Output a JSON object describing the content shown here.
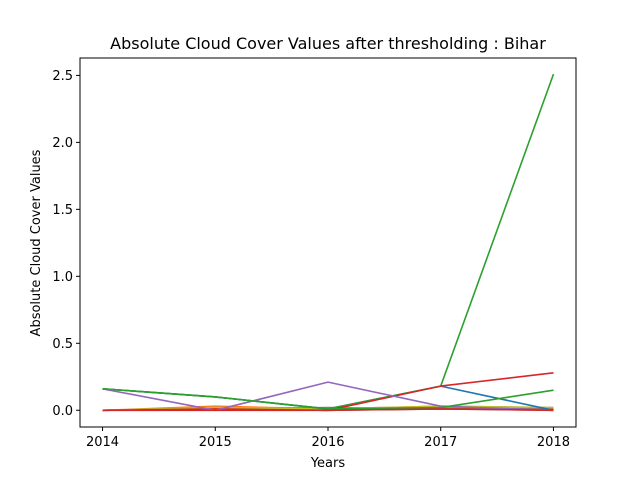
{
  "chart_data": {
    "type": "line",
    "title": "Absolute Cloud Cover Values after thresholding : Bihar",
    "xlabel": "Years",
    "ylabel": "Absolute Cloud Cover Values",
    "x": [
      2014,
      2015,
      2016,
      2017,
      2018
    ],
    "xticks": [
      "2014",
      "2015",
      "2016",
      "2017",
      "2018"
    ],
    "yticks": [
      "0.0",
      "0.5",
      "1.0",
      "1.5",
      "2.0",
      "2.5"
    ],
    "xlim": [
      2013.8,
      2018.2
    ],
    "ylim": [
      -0.125,
      2.63
    ],
    "grid": false,
    "series": [
      {
        "color": "#ff7f0e",
        "values": [
          0.0,
          0.03,
          0.01,
          0.02,
          0.01
        ]
      },
      {
        "color": "#8c564b",
        "values": [
          0.0,
          0.01,
          0.0,
          0.01,
          0.01
        ]
      },
      {
        "color": "#e377c2",
        "values": [
          0.0,
          0.02,
          0.01,
          0.03,
          0.02
        ]
      },
      {
        "color": "#7f7f7f",
        "values": [
          0.0,
          0.01,
          0.02,
          0.01,
          0.0
        ]
      },
      {
        "color": "#bcbd22",
        "values": [
          0.0,
          0.02,
          0.01,
          0.03,
          0.02
        ]
      },
      {
        "color": "#1f77b4",
        "values": [
          0.16,
          0.1,
          0.01,
          0.18,
          0.0
        ]
      },
      {
        "color": "#2ca02c",
        "values": [
          0.16,
          0.1,
          0.01,
          0.18,
          2.51
        ]
      },
      {
        "color": "#d62728",
        "values": [
          0.0,
          0.01,
          0.0,
          0.18,
          0.28
        ]
      },
      {
        "color": "#9467bd",
        "values": [
          0.16,
          0.0,
          0.21,
          0.03,
          0.0
        ]
      },
      {
        "color": "#2ca02c",
        "values": [
          0.16,
          0.1,
          0.01,
          0.02,
          0.15
        ]
      },
      {
        "color": "#d62728",
        "values": [
          0.0,
          0.0,
          0.0,
          0.01,
          0.0
        ]
      }
    ]
  }
}
